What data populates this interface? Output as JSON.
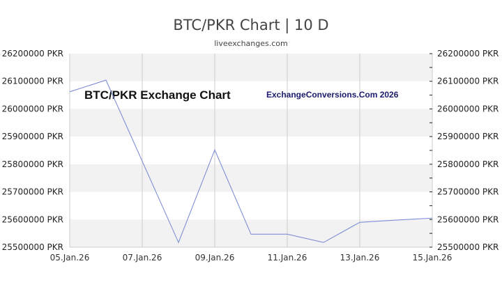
{
  "header": {
    "title": "BTC/PKR Chart | 10 D",
    "subtitle": "liveexchanges.com"
  },
  "watermarks": {
    "left": "BTC/PKR Exchange Chart",
    "right": "ExchangeConversions.Com 2026"
  },
  "colors": {
    "line": "#7f8fd6",
    "band": "#f2f2f2",
    "grid": "#cccccc",
    "text": "#444444"
  },
  "chart_data": {
    "type": "line",
    "title": "BTC/PKR Chart | 10 D",
    "subtitle": "liveexchanges.com",
    "xlabel": "",
    "ylabel": "PKR",
    "x": [
      "05.Jan.26",
      "06.Jan.26",
      "07.Jan.26",
      "08.Jan.26",
      "09.Jan.26",
      "10.Jan.26",
      "11.Jan.26",
      "12.Jan.26",
      "13.Jan.26",
      "14.Jan.26",
      "15.Jan.26"
    ],
    "series": [
      {
        "name": "BTC/PKR",
        "values": [
          26062000,
          26104000,
          25811000,
          25517000,
          25852000,
          25547000,
          25547000,
          25517000,
          25590000,
          25598000,
          25605000
        ]
      }
    ],
    "x_tick_labels": [
      "05.Jan.26",
      "07.Jan.26",
      "09.Jan.26",
      "11.Jan.26",
      "13.Jan.26",
      "15.Jan.26"
    ],
    "y_tick_labels": [
      "26200000 PKR",
      "26100000 PKR",
      "26000000 PKR",
      "25900000 PKR",
      "25800000 PKR",
      "25700000 PKR",
      "25600000 PKR",
      "25500000 PKR"
    ],
    "ylim": [
      25500000,
      26200000
    ],
    "grid": true,
    "legend": "none",
    "annotations": [
      "BTC/PKR Exchange Chart",
      "ExchangeConversions.Com 2026"
    ]
  }
}
